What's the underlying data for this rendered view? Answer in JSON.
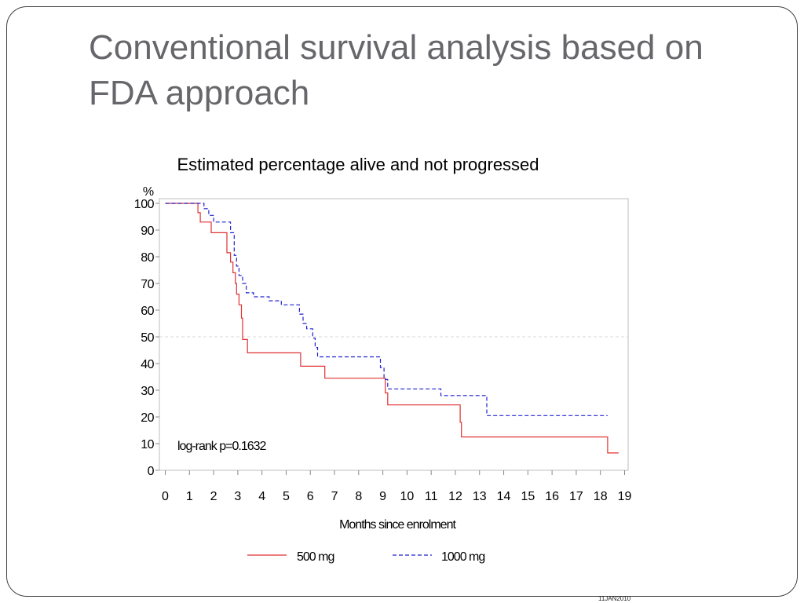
{
  "slide": {
    "title": "Conventional survival analysis based on FDA approach",
    "footer_date": "11JAN2010"
  },
  "colors": {
    "title": "#67666a",
    "series_500": "#e03030",
    "series_1000": "#2020d0",
    "reference_line": "#d8d8d8",
    "axis": "#888888"
  },
  "chart_data": {
    "type": "line",
    "subtype": "kaplan-meier step",
    "title": "Estimated percentage alive and not progressed",
    "ylabel": "%",
    "xlabel": "Months since enrolment",
    "xlim": [
      0,
      19
    ],
    "ylim": [
      0,
      100
    ],
    "x_ticks": [
      0,
      1,
      2,
      3,
      4,
      5,
      6,
      7,
      8,
      9,
      10,
      11,
      12,
      13,
      14,
      15,
      16,
      17,
      18,
      19
    ],
    "y_ticks": [
      0,
      10,
      20,
      30,
      40,
      50,
      60,
      70,
      80,
      90,
      100
    ],
    "reference_line_y": 50,
    "annotation": "log-rank p=0.1632",
    "legend_position": "bottom",
    "series": [
      {
        "name": "500 mg",
        "style": "solid",
        "x": [
          0,
          1.35,
          1.45,
          1.9,
          2.55,
          2.7,
          2.8,
          2.9,
          2.95,
          3.05,
          3.15,
          3.2,
          3.4,
          5.6,
          6.6,
          9.1,
          9.2,
          12.2,
          12.25,
          18.3,
          18.75
        ],
        "y": [
          100,
          96.5,
          93,
          89,
          81.5,
          78,
          74,
          70,
          66,
          62,
          57,
          49,
          44,
          39,
          34.5,
          29,
          24.5,
          18,
          12.5,
          6.5,
          6.5
        ]
      },
      {
        "name": "1000 mg",
        "style": "dashed",
        "x": [
          0,
          1.6,
          1.8,
          2.0,
          2.7,
          2.85,
          2.95,
          3.05,
          3.2,
          3.35,
          3.65,
          4.3,
          4.8,
          5.55,
          5.7,
          5.85,
          6.1,
          6.2,
          6.3,
          8.9,
          9.05,
          9.2,
          9.3,
          11.4,
          13.3,
          18.3
        ],
        "y": [
          100,
          98,
          95.5,
          93,
          89,
          80.5,
          76.5,
          73,
          70,
          66.5,
          65,
          63.5,
          62,
          58.5,
          55,
          53,
          49.5,
          46,
          42.5,
          38.5,
          34,
          30.5,
          30.5,
          28,
          20.5,
          20.5
        ]
      }
    ]
  }
}
